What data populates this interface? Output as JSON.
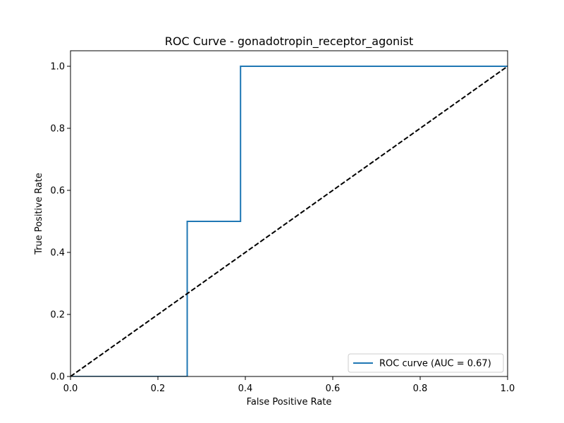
{
  "chart_data": {
    "type": "line",
    "title": "ROC Curve - gonadotropin_receptor_agonist",
    "xlabel": "False Positive Rate",
    "ylabel": "True Positive Rate",
    "xlim": [
      0.0,
      1.0
    ],
    "ylim": [
      0.0,
      1.05
    ],
    "x_ticks": [
      "0.0",
      "0.2",
      "0.4",
      "0.6",
      "0.8",
      "1.0"
    ],
    "y_ticks": [
      "0.0",
      "0.2",
      "0.4",
      "0.6",
      "0.8",
      "1.0"
    ],
    "grid": false,
    "legend_position": "lower-right",
    "series": [
      {
        "name": "ROC curve (AUC = 0.67)",
        "color": "#1f77b4",
        "style": "solid",
        "x": [
          0.0,
          0.267,
          0.267,
          0.389,
          0.389,
          1.0
        ],
        "y": [
          0.0,
          0.0,
          0.5,
          0.5,
          1.0,
          1.0
        ]
      },
      {
        "color": "#000000",
        "style": "dashed",
        "x": [
          0.0,
          1.0
        ],
        "y": [
          0.0,
          1.0
        ]
      }
    ]
  }
}
